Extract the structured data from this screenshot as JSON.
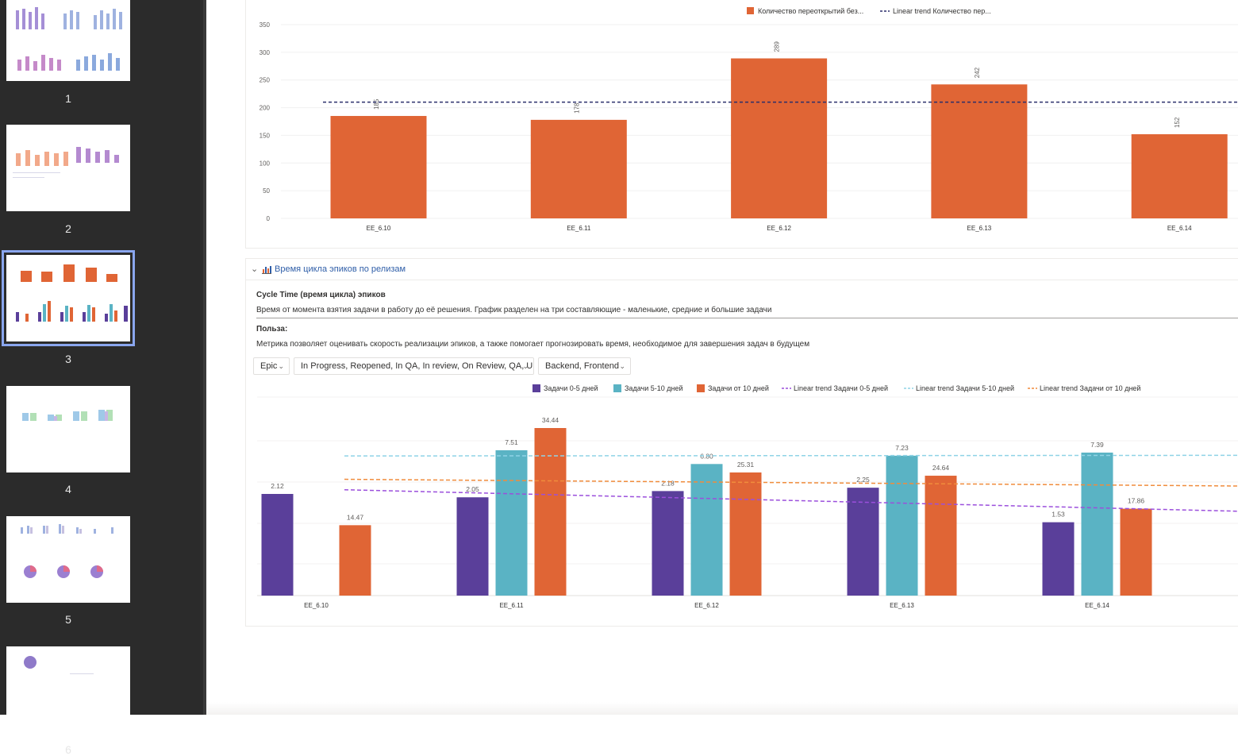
{
  "thumbnails": [
    {
      "number": "1"
    },
    {
      "number": "2"
    },
    {
      "number": "3",
      "selected": true
    },
    {
      "number": "4"
    },
    {
      "number": "5"
    },
    {
      "number": "6"
    }
  ],
  "chart_data": [
    {
      "type": "bar",
      "legend": [
        "Количество переоткрытий без...",
        "Linear trend Количество пер..."
      ],
      "categories": [
        "EE_6.10",
        "EE_6.11",
        "EE_6.12",
        "EE_6.13",
        "EE_6.14"
      ],
      "series": [
        {
          "name": "Количество переоткрытий без...",
          "values": [
            185,
            178,
            289,
            242,
            152
          ],
          "color": "#e06535"
        }
      ],
      "trend": {
        "name": "Linear trend Количество пер...",
        "value": 210,
        "color": "#2b2f6b"
      },
      "yticks": [
        "0",
        "50",
        "100",
        "150",
        "200",
        "250",
        "300",
        "350"
      ],
      "ylim": [
        0,
        350
      ],
      "grid": true,
      "legend_position": "top"
    },
    {
      "type": "bar",
      "categories": [
        "EE_6.10",
        "EE_6.11",
        "EE_6.12",
        "EE_6.13",
        "EE_6.14"
      ],
      "series": [
        {
          "name": "Задачи 0-5 дней",
          "values": [
            2.12,
            2.05,
            2.18,
            2.25,
            1.53
          ],
          "labels": [
            "2.12",
            "2.05",
            "2.18",
            "2.25",
            "1.53"
          ],
          "color": "#5a3f9a"
        },
        {
          "name": "Задачи 5-10 дней",
          "values": [
            null,
            7.51,
            6.8,
            7.23,
            7.39
          ],
          "labels": [
            "",
            "7.51",
            "6.80",
            "7.23",
            "7.39"
          ],
          "color": "#5ab3c4"
        },
        {
          "name": "Задачи от 10 дней",
          "values": [
            14.47,
            34.44,
            25.31,
            24.64,
            17.86
          ],
          "labels": [
            "14.47",
            "34.44",
            "25.31",
            "24.64",
            "17.86"
          ],
          "color": "#e06535"
        }
      ],
      "trends": [
        {
          "name": "Linear trend Задачи 0-5 дней",
          "color": "#9b4fdc"
        },
        {
          "name": "Linear trend Задачи 5-10 дней",
          "color": "#8fd3e6"
        },
        {
          "name": "Linear trend Задачи от 10 дней",
          "color": "#f08c3c"
        }
      ],
      "grid": true,
      "legend_position": "top"
    }
  ],
  "section2": {
    "title": "Время цикла эпиков по релизам",
    "heading": "Cycle Time (время цикла) эпиков",
    "description": "Время от момента взятия задачи в работу до её решения. График разделен на три составляющие - маленькие, средние и большие задачи",
    "benefit_label": "Польза:",
    "benefit_text": "Метрика позволяет оценивать скорость реализации эпиков, а также помогает прогнозировать время, необходимое для завершения задач в будущем",
    "filters": [
      "Epic",
      "In Progress, Reopened, In QA, In review, On Review, QA, U...",
      "Backend, Frontend"
    ]
  }
}
